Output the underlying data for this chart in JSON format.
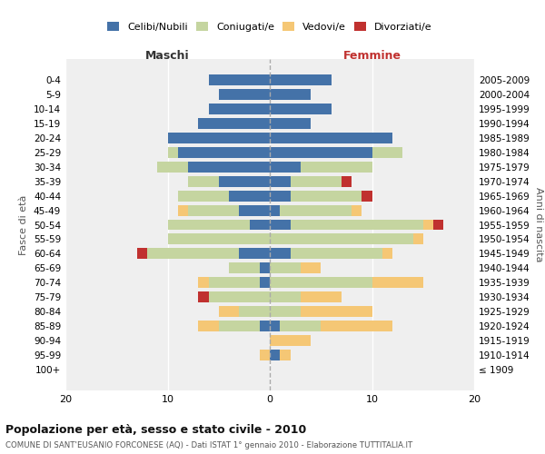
{
  "age_groups": [
    "0-4",
    "5-9",
    "10-14",
    "15-19",
    "20-24",
    "25-29",
    "30-34",
    "35-39",
    "40-44",
    "45-49",
    "50-54",
    "55-59",
    "60-64",
    "65-69",
    "70-74",
    "75-79",
    "80-84",
    "85-89",
    "90-94",
    "95-99",
    "100+"
  ],
  "birth_years": [
    "2005-2009",
    "2000-2004",
    "1995-1999",
    "1990-1994",
    "1985-1989",
    "1980-1984",
    "1975-1979",
    "1970-1974",
    "1965-1969",
    "1960-1964",
    "1955-1959",
    "1950-1954",
    "1945-1949",
    "1940-1944",
    "1935-1939",
    "1930-1934",
    "1925-1929",
    "1920-1924",
    "1915-1919",
    "1910-1914",
    "≤ 1909"
  ],
  "males": {
    "celibi": [
      6,
      5,
      6,
      7,
      10,
      9,
      8,
      5,
      4,
      3,
      2,
      0,
      3,
      1,
      1,
      0,
      0,
      1,
      0,
      0,
      0
    ],
    "coniugati": [
      0,
      0,
      0,
      0,
      0,
      1,
      3,
      3,
      5,
      5,
      8,
      10,
      9,
      3,
      5,
      6,
      3,
      4,
      0,
      0,
      0
    ],
    "vedovi": [
      0,
      0,
      0,
      0,
      0,
      0,
      0,
      0,
      0,
      1,
      0,
      0,
      0,
      0,
      1,
      0,
      2,
      2,
      0,
      1,
      0
    ],
    "divorziati": [
      0,
      0,
      0,
      0,
      0,
      0,
      0,
      0,
      0,
      0,
      0,
      0,
      1,
      0,
      0,
      1,
      0,
      0,
      0,
      0,
      0
    ]
  },
  "females": {
    "nubili": [
      6,
      4,
      6,
      4,
      12,
      10,
      3,
      2,
      2,
      1,
      2,
      0,
      2,
      0,
      0,
      0,
      0,
      1,
      0,
      1,
      0
    ],
    "coniugate": [
      0,
      0,
      0,
      0,
      0,
      3,
      7,
      5,
      7,
      7,
      13,
      14,
      9,
      3,
      10,
      3,
      3,
      4,
      0,
      0,
      0
    ],
    "vedove": [
      0,
      0,
      0,
      0,
      0,
      0,
      0,
      0,
      0,
      1,
      1,
      1,
      1,
      2,
      5,
      4,
      7,
      7,
      4,
      1,
      0
    ],
    "divorziate": [
      0,
      0,
      0,
      0,
      0,
      0,
      0,
      1,
      1,
      0,
      1,
      0,
      0,
      0,
      0,
      0,
      0,
      0,
      0,
      0,
      0
    ]
  },
  "color_celibi": "#4472a8",
  "color_coniugati": "#c5d5a0",
  "color_vedovi": "#f5c775",
  "color_divorziati": "#c0312f",
  "xlim": 20,
  "title": "Popolazione per età, sesso e stato civile - 2010",
  "subtitle": "COMUNE DI SANT'EUSANIO FORCONESE (AQ) - Dati ISTAT 1° gennaio 2010 - Elaborazione TUTTITALIA.IT",
  "ylabel_left": "Fasce di età",
  "ylabel_right": "Anni di nascita",
  "xlabel_maschi": "Maschi",
  "xlabel_femmine": "Femmine",
  "bg_color": "#efefef"
}
